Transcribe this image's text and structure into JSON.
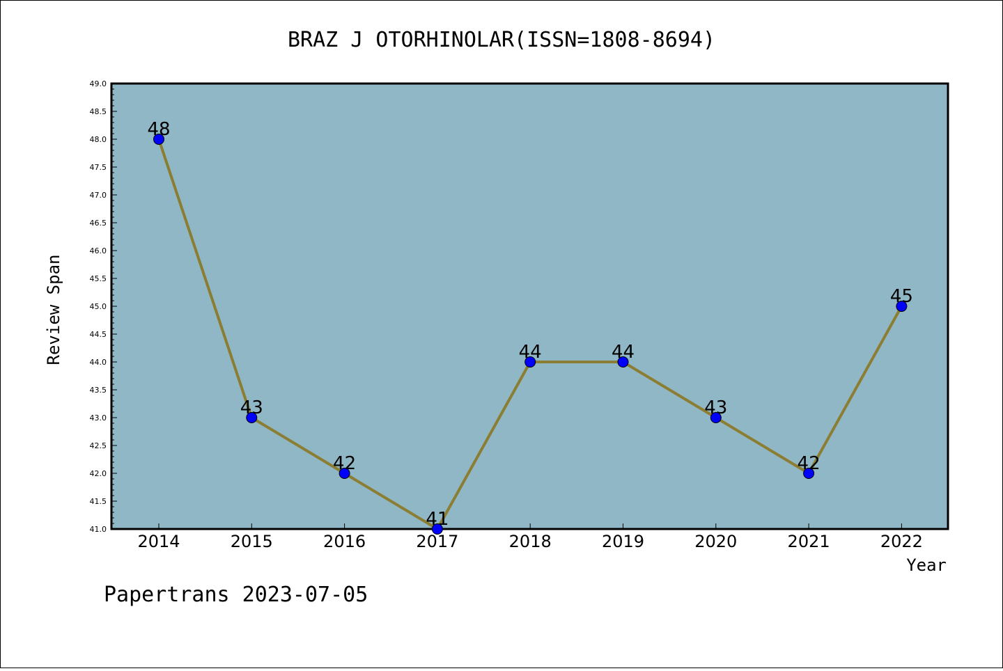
{
  "chart_data": {
    "type": "line",
    "title": "BRAZ J OTORHINOLAR(ISSN=1808-8694)",
    "xlabel": "Year",
    "ylabel": "Review Span",
    "categories": [
      "2014",
      "2015",
      "2016",
      "2017",
      "2018",
      "2019",
      "2020",
      "2021",
      "2022"
    ],
    "series": [
      {
        "values": [
          48,
          43,
          42,
          41,
          44,
          44,
          43,
          42,
          45
        ]
      }
    ],
    "data_labels": [
      "48",
      "43",
      "42",
      "41",
      "44",
      "44",
      "43",
      "42",
      "45"
    ],
    "ylim": [
      41.0,
      49.0
    ],
    "yticks": [
      "41.0",
      "41.5",
      "42.0",
      "42.5",
      "43.0",
      "43.5",
      "44.0",
      "44.5",
      "45.0",
      "45.5",
      "46.0",
      "46.5",
      "47.0",
      "47.5",
      "48.0",
      "48.5",
      "49.0"
    ],
    "grid": false,
    "colors": {
      "plot_bg": "#8fb7c5",
      "line": "#8b7e33",
      "marker": "#0000ff"
    }
  },
  "footer": "Papertrans 2023-07-05"
}
